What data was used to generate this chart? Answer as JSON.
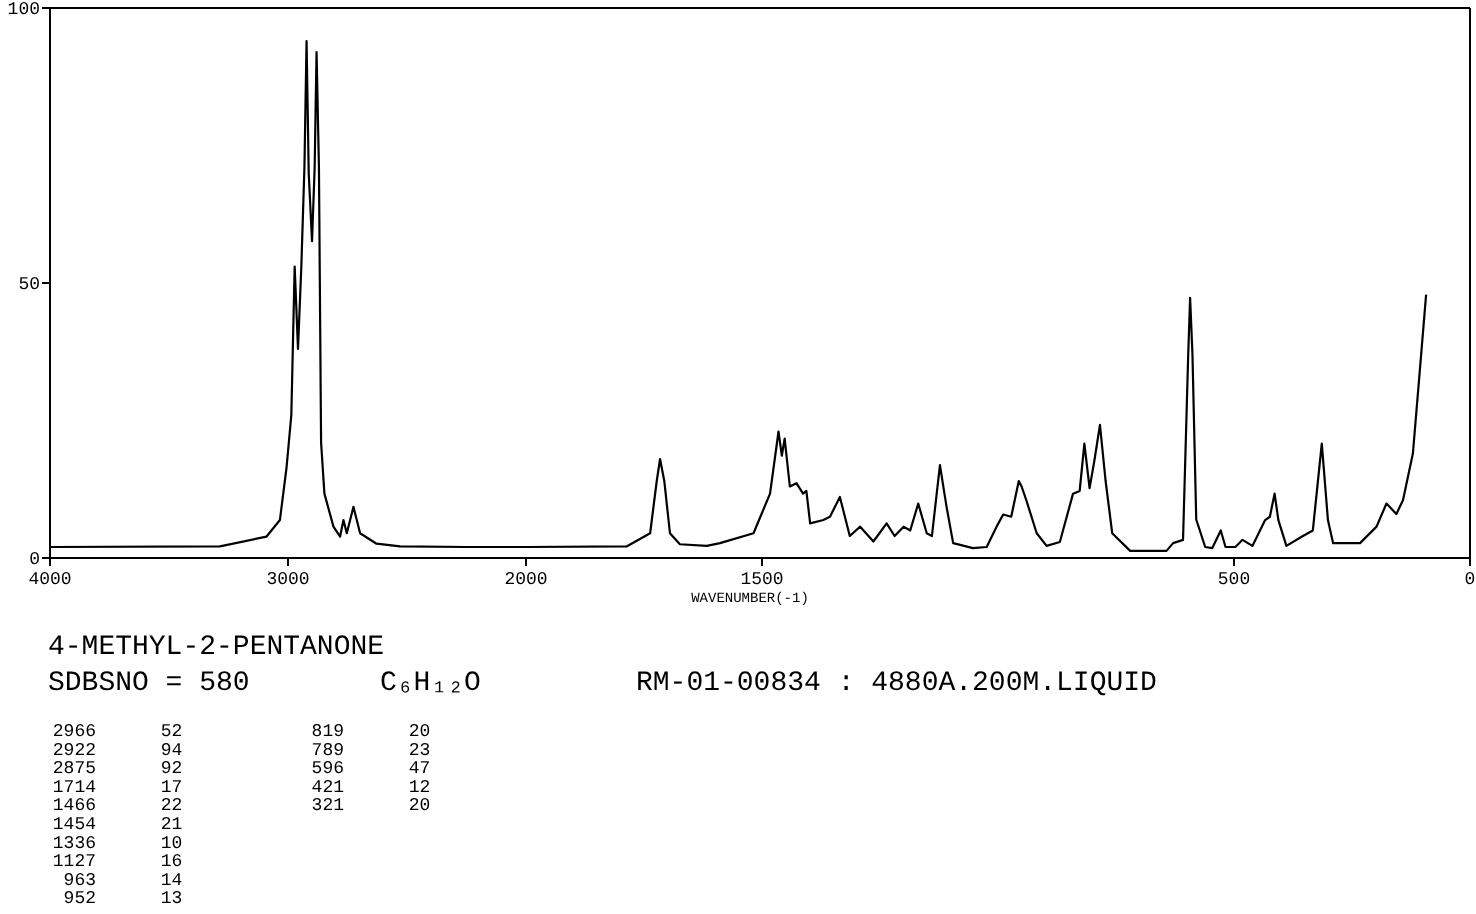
{
  "chart_data": [
    {
      "type": "line",
      "title": "4-METHYL-2-PENTANONE",
      "annotations": [
        "SDBSNO = 580",
        "C₆H₁₂O",
        "RM-01-00834 : 4880A.200M.LIQUID",
        "2966 52",
        "2922 94",
        "2875 92",
        "1714 17",
        "1466 22",
        "1454 21",
        "1336 10",
        "1127 16",
        "963 14",
        "952 13",
        "819 20",
        "789 23",
        "596 47",
        "421 12",
        "321 20"
      ],
      "xlim": [
        4000,
        2000
      ],
      "ylim": [
        0,
        100
      ],
      "xticks": [
        4000,
        3000
      ],
      "yticks": [
        0,
        50,
        100
      ],
      "x": [
        4000,
        3286,
        3090,
        3034,
        3006,
        2986,
        2972,
        2958,
        2944,
        2931,
        2922,
        2913,
        2899,
        2888,
        2880,
        2870,
        2861,
        2847,
        2809,
        2781,
        2767,
        2753,
        2725,
        2697,
        2628,
        2529,
        2249,
        2000
      ],
      "series": [
        {
          "color": "#000000",
          "values": [
            2.0,
            2.1,
            3.9,
            6.9,
            16.5,
            26,
            53,
            38,
            53,
            71,
            94,
            70,
            57.6,
            71,
            92,
            71,
            21,
            11.7,
            5.7,
            3.9,
            6.9,
            4.5,
            9.3,
            4.5,
            2.6,
            2.1,
            2.0,
            2.0
          ]
        }
      ]
    },
    {
      "type": "line",
      "xlabel": "WAVENUMBER(-1)",
      "xlim": [
        2000,
        0
      ],
      "ylim": [
        0,
        100
      ],
      "xticks": [
        2000,
        1500,
        500,
        0
      ],
      "tick_labels": "x",
      "x": [
        2000,
        1787,
        1737,
        1723,
        1716,
        1707,
        1695,
        1674,
        1617,
        1589,
        1518,
        1483,
        1465,
        1458,
        1452,
        1441,
        1427,
        1413,
        1406,
        1398,
        1370,
        1356,
        1335,
        1314,
        1292,
        1264,
        1236,
        1219,
        1200,
        1186,
        1169,
        1151,
        1140,
        1123,
        1109,
        1095,
        1053,
        1024,
        1003,
        989,
        972,
        956,
        950,
        940,
        918,
        897,
        869,
        841,
        827,
        817,
        806,
        796,
        784,
        772,
        758,
        720,
        643,
        629,
        608,
        597,
        593,
        588,
        580,
        561,
        546,
        528,
        518,
        497,
        482,
        461,
        434,
        424,
        414,
        406,
        389,
        354,
        333,
        314,
        301,
        290,
        233,
        198,
        177,
        156,
        142,
        121,
        107,
        93
      ],
      "series": [
        {
          "color": "#000000",
          "values": [
            2.0,
            2.1,
            4.5,
            14,
            18,
            14,
            4.5,
            2.5,
            2.2,
            2.7,
            4.5,
            11.7,
            23,
            18.6,
            21.7,
            13,
            13.6,
            11.7,
            12.2,
            6.3,
            6.9,
            7.5,
            11.1,
            4,
            5.7,
            3,
            6.3,
            4,
            5.7,
            5,
            9.9,
            4.5,
            4,
            16.9,
            9.3,
            2.7,
            1.8,
            2.0,
            5.7,
            7.9,
            7.5,
            14,
            13,
            10.5,
            4.5,
            2.2,
            2.9,
            11.7,
            12.2,
            20.8,
            12.7,
            17.6,
            24.2,
            14,
            4.5,
            1.3,
            1.3,
            2.7,
            3.3,
            37,
            47.3,
            37,
            7,
            2,
            1.8,
            5,
            2,
            2,
            3.3,
            2.2,
            6.9,
            7.5,
            11.7,
            6.9,
            2.2,
            4,
            5,
            20.8,
            6.9,
            2.7,
            2.7,
            5.7,
            9.9,
            8,
            10.5,
            19,
            33.4,
            47.9
          ]
        }
      ]
    }
  ]
}
